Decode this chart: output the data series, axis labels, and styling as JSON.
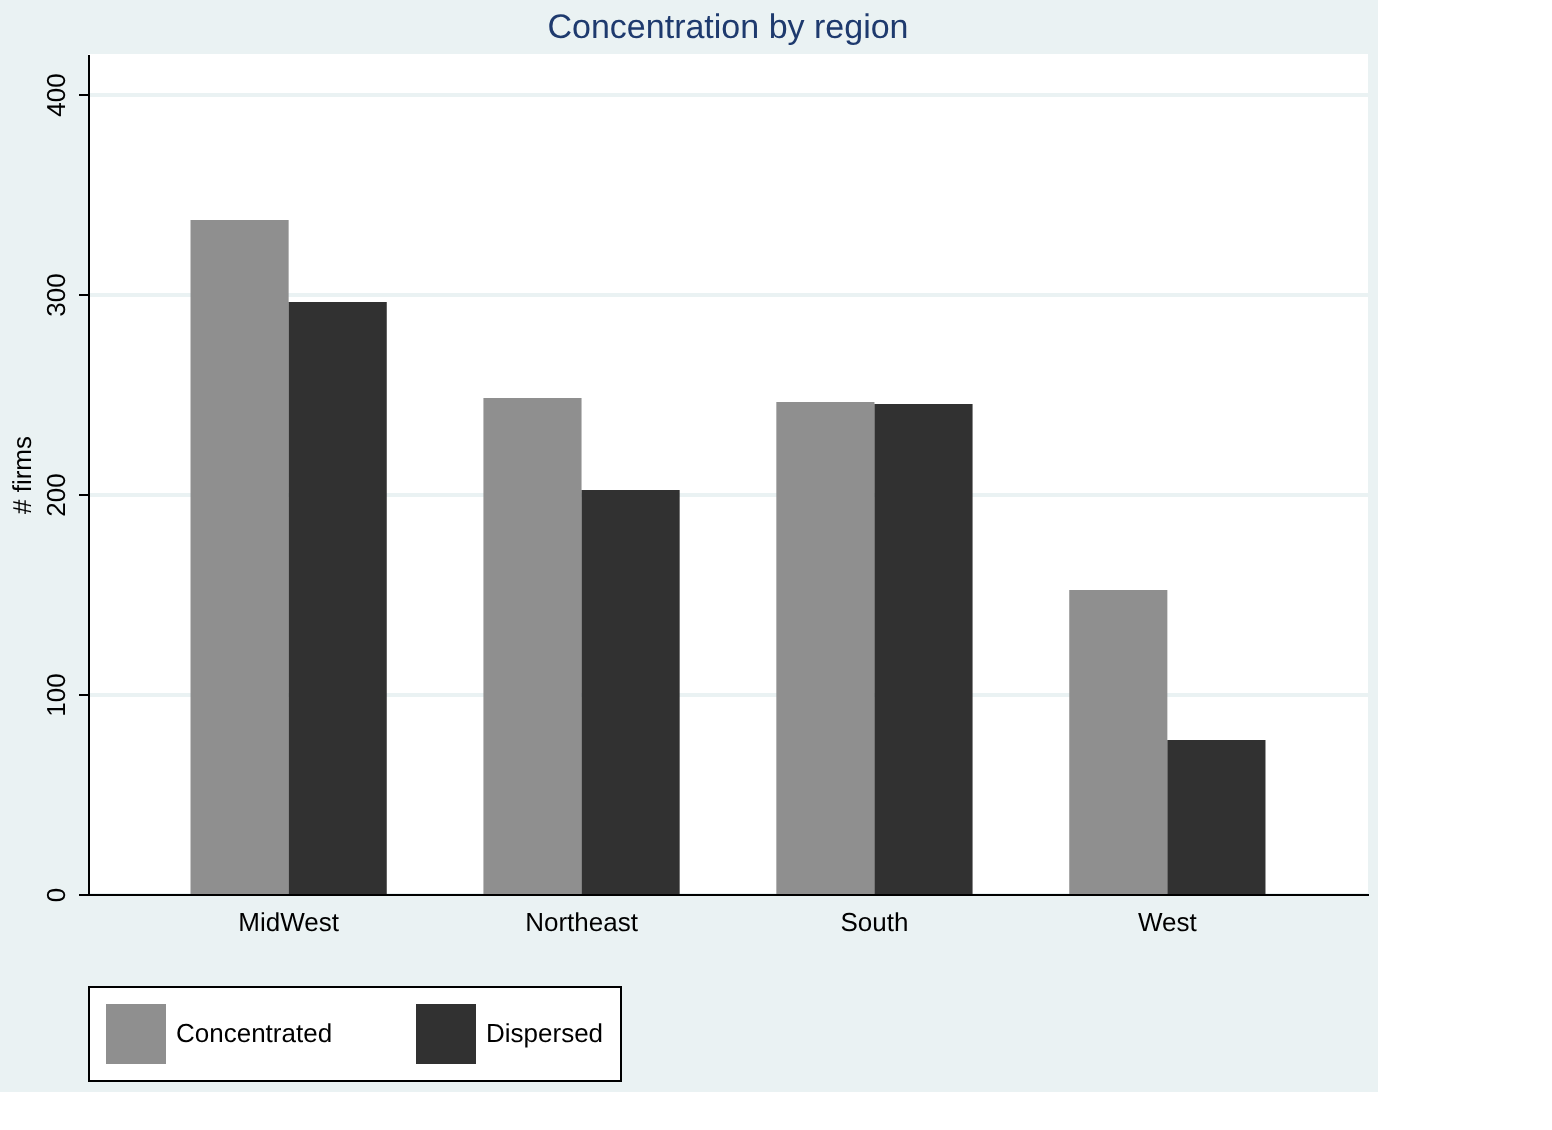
{
  "chart_data": {
    "type": "bar",
    "title": "Concentration by region",
    "ylabel": "# firms",
    "categories": [
      "MidWest",
      "Northeast",
      "South",
      "West"
    ],
    "series": [
      {
        "name": "Concentrated",
        "color": "#8f8f8f",
        "values": [
          337,
          248,
          246,
          152
        ]
      },
      {
        "name": "Dispersed",
        "color": "#313131",
        "values": [
          296,
          202,
          245,
          77
        ]
      }
    ],
    "ylim": [
      0,
      420
    ],
    "yticks": [
      0,
      100,
      200,
      300,
      400
    ],
    "grid": "y",
    "legend": "bottom"
  }
}
